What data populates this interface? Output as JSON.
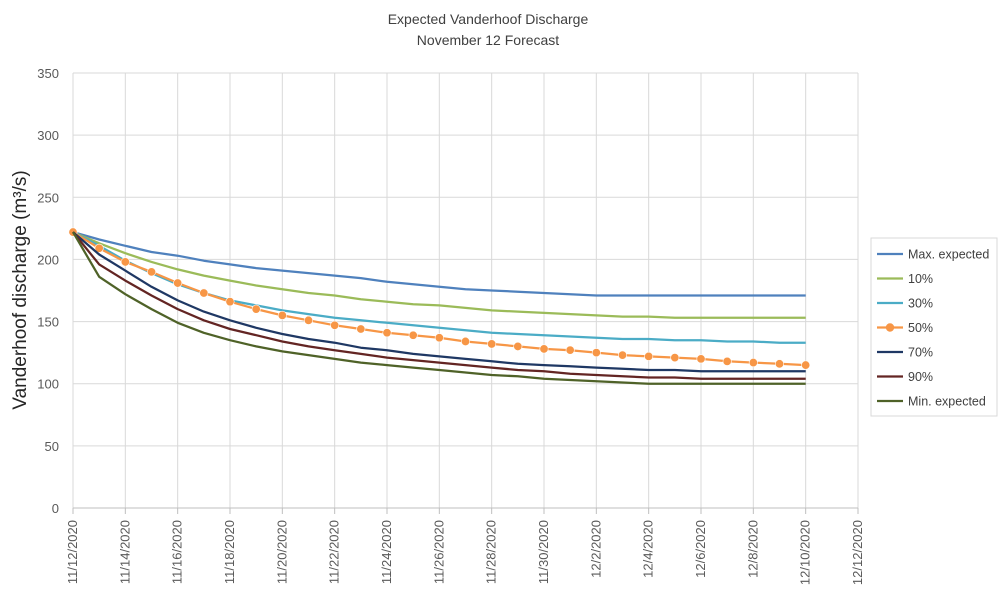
{
  "chart_data": {
    "type": "line",
    "title": "Expected Vanderhoof Discharge",
    "subtitle": "November 12 Forecast",
    "ylabel": "Vanderhoof discharge (m³/s)",
    "xlabel": "",
    "ylim": [
      0,
      350
    ],
    "yticks": [
      0,
      50,
      100,
      150,
      200,
      250,
      300,
      350
    ],
    "x_tick_labels": [
      "11/12/2020",
      "11/14/2020",
      "11/16/2020",
      "11/18/2020",
      "11/20/2020",
      "11/22/2020",
      "11/24/2020",
      "11/26/2020",
      "11/28/2020",
      "11/30/2020",
      "12/2/2020",
      "12/4/2020",
      "12/6/2020",
      "12/8/2020",
      "12/10/2020",
      "12/12/2020"
    ],
    "x": [
      "11/12/2020",
      "11/13/2020",
      "11/14/2020",
      "11/15/2020",
      "11/16/2020",
      "11/17/2020",
      "11/18/2020",
      "11/19/2020",
      "11/20/2020",
      "11/21/2020",
      "11/22/2020",
      "11/23/2020",
      "11/24/2020",
      "11/25/2020",
      "11/26/2020",
      "11/27/2020",
      "11/28/2020",
      "11/29/2020",
      "11/30/2020",
      "12/1/2020",
      "12/2/2020",
      "12/3/2020",
      "12/4/2020",
      "12/5/2020",
      "12/6/2020",
      "12/7/2020",
      "12/8/2020",
      "12/9/2020",
      "12/10/2020"
    ],
    "grid": true,
    "legend_position": "right",
    "series": [
      {
        "name": "Max. expected",
        "color": "#4f81bd",
        "marker": false,
        "values": [
          222,
          216,
          211,
          206,
          203,
          199,
          196,
          193,
          191,
          189,
          187,
          185,
          182,
          180,
          178,
          176,
          175,
          174,
          173,
          172,
          171,
          171,
          171,
          171,
          171,
          171,
          171,
          171,
          171
        ]
      },
      {
        "name": "10%",
        "color": "#9bbb59",
        "marker": false,
        "values": [
          222,
          213,
          205,
          198,
          192,
          187,
          183,
          179,
          176,
          173,
          171,
          168,
          166,
          164,
          163,
          161,
          159,
          158,
          157,
          156,
          155,
          154,
          154,
          153,
          153,
          153,
          153,
          153,
          153
        ]
      },
      {
        "name": "30%",
        "color": "#4bacc6",
        "marker": false,
        "values": [
          222,
          211,
          199,
          189,
          180,
          173,
          167,
          163,
          159,
          156,
          153,
          151,
          149,
          147,
          145,
          143,
          141,
          140,
          139,
          138,
          137,
          136,
          136,
          135,
          135,
          134,
          134,
          133,
          133
        ]
      },
      {
        "name": "50%",
        "color": "#f79646",
        "marker": true,
        "values": [
          222,
          209,
          198,
          190,
          181,
          173,
          166,
          160,
          155,
          151,
          147,
          144,
          141,
          139,
          137,
          134,
          132,
          130,
          128,
          127,
          125,
          123,
          122,
          121,
          120,
          118,
          117,
          116,
          115
        ]
      },
      {
        "name": "70%",
        "color": "#1f3864",
        "marker": false,
        "values": [
          222,
          204,
          191,
          178,
          167,
          158,
          151,
          145,
          140,
          136,
          133,
          129,
          127,
          124,
          122,
          120,
          118,
          116,
          115,
          114,
          113,
          112,
          111,
          111,
          110,
          110,
          110,
          110,
          110
        ]
      },
      {
        "name": "90%",
        "color": "#632523",
        "marker": false,
        "values": [
          222,
          196,
          183,
          171,
          160,
          151,
          144,
          139,
          134,
          130,
          127,
          124,
          121,
          119,
          117,
          115,
          113,
          111,
          110,
          108,
          107,
          106,
          105,
          105,
          104,
          104,
          104,
          104,
          104
        ]
      },
      {
        "name": "Min. expected",
        "color": "#4f6228",
        "marker": false,
        "values": [
          222,
          186,
          172,
          160,
          149,
          141,
          135,
          130,
          126,
          123,
          120,
          117,
          115,
          113,
          111,
          109,
          107,
          106,
          104,
          103,
          102,
          101,
          100,
          100,
          100,
          100,
          100,
          100,
          100
        ]
      }
    ]
  }
}
